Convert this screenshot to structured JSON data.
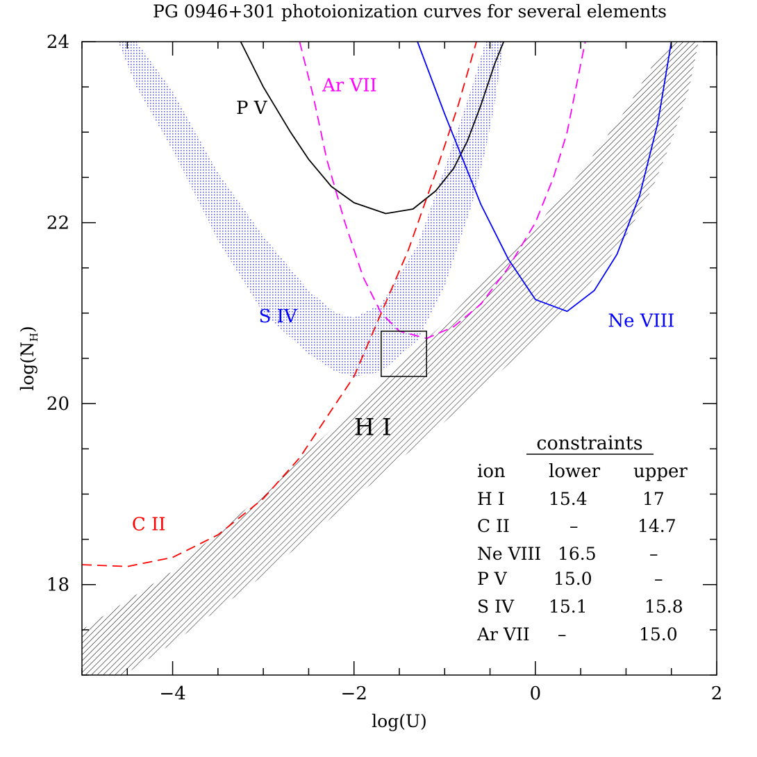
{
  "chart_data": {
    "type": "line",
    "title": "PG 0946+301 photoionization curves for several elements",
    "xlabel": "log(U)",
    "ylabel_main": "log(N",
    "ylabel_sub": "H",
    "ylabel_close": ")",
    "xlim": [
      -5,
      2
    ],
    "ylim": [
      17,
      24
    ],
    "x_ticks": [
      {
        "value": -4,
        "label": "−4"
      },
      {
        "value": -2,
        "label": "−2"
      },
      {
        "value": 0,
        "label": "0"
      },
      {
        "value": 2,
        "label": "2"
      }
    ],
    "y_ticks": [
      {
        "value": 18,
        "label": "18"
      },
      {
        "value": 20,
        "label": "20"
      },
      {
        "value": 22,
        "label": "22"
      },
      {
        "value": 24,
        "label": "24"
      }
    ],
    "bands": [
      {
        "name": "H I",
        "color": "#000000",
        "pattern": "hatch",
        "points": [
          {
            "x": -5.0,
            "lo": 16.7,
            "hi": 17.5
          },
          {
            "x": -4.0,
            "lo": 17.35,
            "hi": 18.15
          },
          {
            "x": -3.0,
            "lo": 18.1,
            "hi": 19.0
          },
          {
            "x": -2.0,
            "lo": 18.95,
            "hi": 19.95
          },
          {
            "x": -1.0,
            "lo": 19.8,
            "hi": 20.9
          },
          {
            "x": 0.0,
            "lo": 20.7,
            "hi": 21.95
          },
          {
            "x": 0.5,
            "lo": 21.2,
            "hi": 22.55
          },
          {
            "x": 1.0,
            "lo": 21.85,
            "hi": 23.25
          },
          {
            "x": 1.3,
            "lo": 22.4,
            "hi": 23.75
          },
          {
            "x": 1.5,
            "lo": 22.9,
            "hi": 24.0
          },
          {
            "x": 1.7,
            "lo": 23.5,
            "hi": 24.0
          },
          {
            "x": 1.8,
            "lo": 24.0,
            "hi": 24.0
          }
        ]
      },
      {
        "name": "S IV",
        "color": "#5a5ad2",
        "pattern": "dots",
        "points": [
          {
            "x": -4.6,
            "lo": 24.0,
            "hi": 24.0
          },
          {
            "x": -4.4,
            "lo": 23.5,
            "hi": 24.0
          },
          {
            "x": -4.0,
            "lo": 22.8,
            "hi": 23.45
          },
          {
            "x": -3.5,
            "lo": 21.8,
            "hi": 22.55
          },
          {
            "x": -3.0,
            "lo": 21.0,
            "hi": 21.85
          },
          {
            "x": -2.5,
            "lo": 20.55,
            "hi": 21.25
          },
          {
            "x": -2.2,
            "lo": 20.35,
            "hi": 21.0
          },
          {
            "x": -2.0,
            "lo": 20.3,
            "hi": 20.95
          },
          {
            "x": -1.7,
            "lo": 20.35,
            "hi": 21.1
          },
          {
            "x": -1.3,
            "lo": 20.7,
            "hi": 21.75
          },
          {
            "x": -1.0,
            "lo": 21.3,
            "hi": 22.6
          },
          {
            "x": -0.7,
            "lo": 22.2,
            "hi": 23.5
          },
          {
            "x": -0.55,
            "lo": 22.8,
            "hi": 24.0
          },
          {
            "x": -0.45,
            "lo": 23.3,
            "hi": 24.0
          },
          {
            "x": -0.35,
            "lo": 24.0,
            "hi": 24.0
          }
        ]
      }
    ],
    "series": [
      {
        "name": "P V",
        "color": "#000000",
        "dash": "solid",
        "points": [
          {
            "x": -3.25,
            "y": 24.0
          },
          {
            "x": -3.0,
            "y": 23.5
          },
          {
            "x": -2.7,
            "y": 23.0
          },
          {
            "x": -2.5,
            "y": 22.7
          },
          {
            "x": -2.25,
            "y": 22.4
          },
          {
            "x": -2.0,
            "y": 22.22
          },
          {
            "x": -1.65,
            "y": 22.1
          },
          {
            "x": -1.35,
            "y": 22.15
          },
          {
            "x": -1.1,
            "y": 22.35
          },
          {
            "x": -0.9,
            "y": 22.6
          },
          {
            "x": -0.75,
            "y": 22.9
          },
          {
            "x": -0.6,
            "y": 23.3
          },
          {
            "x": -0.45,
            "y": 23.75
          },
          {
            "x": -0.35,
            "y": 24.0
          }
        ]
      },
      {
        "name": "Ar VII",
        "color": "#ff00ff",
        "dash": "dashed",
        "points": [
          {
            "x": -2.6,
            "y": 24.0
          },
          {
            "x": -2.45,
            "y": 23.4
          },
          {
            "x": -2.3,
            "y": 22.7
          },
          {
            "x": -2.1,
            "y": 22.0
          },
          {
            "x": -1.9,
            "y": 21.4
          },
          {
            "x": -1.7,
            "y": 21.0
          },
          {
            "x": -1.5,
            "y": 20.8
          },
          {
            "x": -1.2,
            "y": 20.72
          },
          {
            "x": -0.9,
            "y": 20.85
          },
          {
            "x": -0.6,
            "y": 21.1
          },
          {
            "x": -0.3,
            "y": 21.5
          },
          {
            "x": 0.0,
            "y": 22.0
          },
          {
            "x": 0.2,
            "y": 22.5
          },
          {
            "x": 0.35,
            "y": 23.0
          },
          {
            "x": 0.45,
            "y": 23.5
          },
          {
            "x": 0.55,
            "y": 24.0
          }
        ]
      },
      {
        "name": "C II",
        "color": "#ff0000",
        "dash": "dashed",
        "points": [
          {
            "x": -5.0,
            "y": 18.22
          },
          {
            "x": -4.5,
            "y": 18.2
          },
          {
            "x": -4.0,
            "y": 18.3
          },
          {
            "x": -3.5,
            "y": 18.55
          },
          {
            "x": -3.0,
            "y": 18.95
          },
          {
            "x": -2.6,
            "y": 19.4
          },
          {
            "x": -2.3,
            "y": 19.85
          },
          {
            "x": -2.0,
            "y": 20.3
          },
          {
            "x": -1.7,
            "y": 21.0
          },
          {
            "x": -1.4,
            "y": 21.7
          },
          {
            "x": -1.1,
            "y": 22.55
          },
          {
            "x": -0.85,
            "y": 23.3
          },
          {
            "x": -0.65,
            "y": 24.0
          }
        ]
      },
      {
        "name": "Ne VIII",
        "color": "#0000ff",
        "dash": "solid",
        "points": [
          {
            "x": -1.3,
            "y": 24.0
          },
          {
            "x": -1.0,
            "y": 23.2
          },
          {
            "x": -0.6,
            "y": 22.2
          },
          {
            "x": -0.3,
            "y": 21.6
          },
          {
            "x": 0.0,
            "y": 21.15
          },
          {
            "x": 0.35,
            "y": 21.02
          },
          {
            "x": 0.65,
            "y": 21.25
          },
          {
            "x": 0.9,
            "y": 21.65
          },
          {
            "x": 1.15,
            "y": 22.3
          },
          {
            "x": 1.35,
            "y": 23.1
          },
          {
            "x": 1.5,
            "y": 24.0
          }
        ]
      }
    ],
    "box": {
      "x0": -1.7,
      "x1": -1.2,
      "y0": 20.3,
      "y1": 20.8
    },
    "labels": [
      {
        "text": "P V",
        "x": -3.3,
        "y": 23.2,
        "color": "#000000"
      },
      {
        "text": "Ar VII",
        "x": -2.35,
        "y": 23.45,
        "color": "#ff00ff"
      },
      {
        "text": "S IV",
        "x": -3.05,
        "y": 20.9,
        "color": "#0000ff"
      },
      {
        "text": "Ne VIII",
        "x": 0.8,
        "y": 20.85,
        "color": "#0000ff"
      },
      {
        "text": "C II",
        "x": -4.45,
        "y": 18.6,
        "color": "#ff0000"
      },
      {
        "text": "H I",
        "x": -2.0,
        "y": 19.65,
        "color": "#000000"
      }
    ],
    "constraints_table": {
      "title": "constraints",
      "headers": [
        "ion",
        "lower",
        "upper"
      ],
      "rows": [
        [
          "H I",
          "15.4",
          "17"
        ],
        [
          "C II",
          "–",
          "14.7"
        ],
        [
          "Ne VIII",
          "16.5",
          "–"
        ],
        [
          "P V",
          "15.0",
          "–"
        ],
        [
          "S IV",
          "15.1",
          "15.8"
        ],
        [
          "Ar VII",
          "–",
          "15.0"
        ]
      ]
    }
  }
}
